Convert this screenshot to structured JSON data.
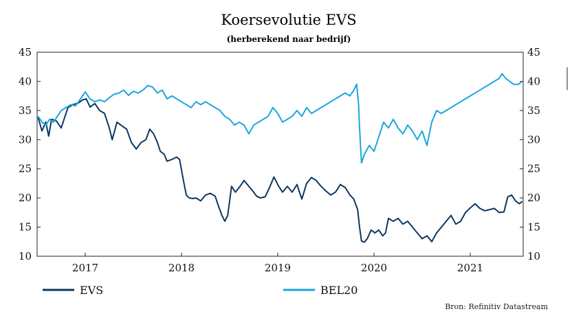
{
  "chart_data": {
    "type": "line",
    "title": "Koersevolutie EVS",
    "subtitle": "(herberekend naar bedrijf)",
    "source": "Bron: Refinitiv Datastream",
    "ylim": [
      10,
      45
    ],
    "y_ticks": [
      10,
      15,
      20,
      25,
      30,
      35,
      40,
      45
    ],
    "x_range": [
      2016.35,
      2021.4
    ],
    "x_ticks": [
      {
        "label": "2017",
        "x": 2016.85
      },
      {
        "label": "2018",
        "x": 2017.85
      },
      {
        "label": "2019",
        "x": 2018.85
      },
      {
        "label": "2020",
        "x": 2019.85
      },
      {
        "label": "2021",
        "x": 2020.85
      }
    ],
    "grid": false,
    "legend_position": "bottom",
    "series": [
      {
        "name": "EVS",
        "color": "#0d3760",
        "points": [
          [
            2016.36,
            33.8
          ],
          [
            2016.4,
            31.5
          ],
          [
            2016.44,
            33.0
          ],
          [
            2016.47,
            30.6
          ],
          [
            2016.5,
            33.5
          ],
          [
            2016.55,
            33.2
          ],
          [
            2016.6,
            32.0
          ],
          [
            2016.63,
            33.5
          ],
          [
            2016.67,
            35.5
          ],
          [
            2016.72,
            36.0
          ],
          [
            2016.78,
            36.3
          ],
          [
            2016.82,
            36.8
          ],
          [
            2016.86,
            37.0
          ],
          [
            2016.9,
            35.6
          ],
          [
            2016.95,
            36.2
          ],
          [
            2017.0,
            35.0
          ],
          [
            2017.05,
            34.5
          ],
          [
            2017.1,
            32.0
          ],
          [
            2017.13,
            30.0
          ],
          [
            2017.18,
            33.0
          ],
          [
            2017.22,
            32.5
          ],
          [
            2017.28,
            31.8
          ],
          [
            2017.33,
            29.5
          ],
          [
            2017.38,
            28.4
          ],
          [
            2017.43,
            29.5
          ],
          [
            2017.48,
            30.0
          ],
          [
            2017.52,
            31.8
          ],
          [
            2017.56,
            31.0
          ],
          [
            2017.6,
            29.5
          ],
          [
            2017.63,
            28.0
          ],
          [
            2017.67,
            27.5
          ],
          [
            2017.7,
            26.3
          ],
          [
            2017.75,
            26.6
          ],
          [
            2017.8,
            27.0
          ],
          [
            2017.83,
            26.6
          ],
          [
            2017.87,
            23.0
          ],
          [
            2017.9,
            20.5
          ],
          [
            2017.93,
            20.0
          ],
          [
            2017.97,
            19.9
          ],
          [
            2018.0,
            20.0
          ],
          [
            2018.05,
            19.5
          ],
          [
            2018.1,
            20.5
          ],
          [
            2018.15,
            20.8
          ],
          [
            2018.2,
            20.3
          ],
          [
            2018.23,
            18.8
          ],
          [
            2018.27,
            17.0
          ],
          [
            2018.3,
            16.0
          ],
          [
            2018.33,
            17.0
          ],
          [
            2018.37,
            22.0
          ],
          [
            2018.41,
            21.0
          ],
          [
            2018.45,
            21.8
          ],
          [
            2018.5,
            23.0
          ],
          [
            2018.55,
            22.0
          ],
          [
            2018.6,
            21.0
          ],
          [
            2018.63,
            20.3
          ],
          [
            2018.67,
            20.0
          ],
          [
            2018.72,
            20.2
          ],
          [
            2018.77,
            22.0
          ],
          [
            2018.81,
            23.6
          ],
          [
            2018.86,
            22.0
          ],
          [
            2018.9,
            21.0
          ],
          [
            2018.95,
            22.0
          ],
          [
            2019.0,
            21.0
          ],
          [
            2019.05,
            22.3
          ],
          [
            2019.1,
            19.8
          ],
          [
            2019.15,
            22.5
          ],
          [
            2019.2,
            23.5
          ],
          [
            2019.25,
            23.0
          ],
          [
            2019.3,
            22.0
          ],
          [
            2019.35,
            21.2
          ],
          [
            2019.4,
            20.5
          ],
          [
            2019.45,
            21.0
          ],
          [
            2019.5,
            22.3
          ],
          [
            2019.55,
            21.8
          ],
          [
            2019.6,
            20.5
          ],
          [
            2019.64,
            19.8
          ],
          [
            2019.68,
            18.0
          ],
          [
            2019.7,
            15.0
          ],
          [
            2019.72,
            12.6
          ],
          [
            2019.75,
            12.4
          ],
          [
            2019.78,
            13.0
          ],
          [
            2019.82,
            14.5
          ],
          [
            2019.86,
            14.0
          ],
          [
            2019.9,
            14.5
          ],
          [
            2019.94,
            13.5
          ],
          [
            2019.97,
            14.0
          ],
          [
            2020.0,
            16.5
          ],
          [
            2020.05,
            16.0
          ],
          [
            2020.1,
            16.5
          ],
          [
            2020.15,
            15.5
          ],
          [
            2020.2,
            16.0
          ],
          [
            2020.25,
            15.0
          ],
          [
            2020.3,
            14.0
          ],
          [
            2020.35,
            13.0
          ],
          [
            2020.4,
            13.5
          ],
          [
            2020.45,
            12.5
          ],
          [
            2020.5,
            14.0
          ],
          [
            2020.55,
            15.0
          ],
          [
            2020.6,
            16.0
          ],
          [
            2020.65,
            17.0
          ],
          [
            2020.7,
            15.5
          ],
          [
            2020.75,
            16.0
          ],
          [
            2020.8,
            17.5
          ],
          [
            2020.85,
            18.3
          ],
          [
            2020.9,
            19.0
          ],
          [
            2020.95,
            18.2
          ],
          [
            2021.0,
            17.8
          ],
          [
            2021.05,
            18.0
          ],
          [
            2021.1,
            18.2
          ],
          [
            2021.15,
            17.5
          ],
          [
            2021.2,
            17.6
          ],
          [
            2021.24,
            20.2
          ],
          [
            2021.28,
            20.5
          ],
          [
            2021.32,
            19.5
          ],
          [
            2021.36,
            19.0
          ],
          [
            2021.39,
            19.4
          ]
        ]
      },
      {
        "name": "BEL20",
        "color": "#1aa7dc",
        "points": [
          [
            2016.36,
            34.0
          ],
          [
            2016.4,
            33.0
          ],
          [
            2016.44,
            32.5
          ],
          [
            2016.48,
            33.5
          ],
          [
            2016.52,
            33.0
          ],
          [
            2016.56,
            34.0
          ],
          [
            2016.6,
            35.0
          ],
          [
            2016.65,
            35.5
          ],
          [
            2016.7,
            36.0
          ],
          [
            2016.75,
            35.8
          ],
          [
            2016.8,
            37.0
          ],
          [
            2016.85,
            38.2
          ],
          [
            2016.9,
            37.0
          ],
          [
            2016.95,
            36.5
          ],
          [
            2017.0,
            36.8
          ],
          [
            2017.05,
            36.5
          ],
          [
            2017.1,
            37.2
          ],
          [
            2017.15,
            37.8
          ],
          [
            2017.2,
            38.0
          ],
          [
            2017.25,
            38.5
          ],
          [
            2017.3,
            37.6
          ],
          [
            2017.35,
            38.3
          ],
          [
            2017.4,
            38.0
          ],
          [
            2017.45,
            38.5
          ],
          [
            2017.5,
            39.3
          ],
          [
            2017.55,
            39.0
          ],
          [
            2017.6,
            38.0
          ],
          [
            2017.65,
            38.5
          ],
          [
            2017.7,
            37.0
          ],
          [
            2017.75,
            37.5
          ],
          [
            2017.8,
            37.0
          ],
          [
            2017.85,
            36.5
          ],
          [
            2017.9,
            36.0
          ],
          [
            2017.95,
            35.5
          ],
          [
            2018.0,
            36.5
          ],
          [
            2018.05,
            36.0
          ],
          [
            2018.1,
            36.5
          ],
          [
            2018.15,
            36.0
          ],
          [
            2018.2,
            35.5
          ],
          [
            2018.25,
            35.0
          ],
          [
            2018.3,
            34.0
          ],
          [
            2018.35,
            33.5
          ],
          [
            2018.4,
            32.5
          ],
          [
            2018.45,
            33.0
          ],
          [
            2018.5,
            32.5
          ],
          [
            2018.55,
            31.0
          ],
          [
            2018.6,
            32.5
          ],
          [
            2018.65,
            33.0
          ],
          [
            2018.7,
            33.5
          ],
          [
            2018.75,
            34.0
          ],
          [
            2018.8,
            35.5
          ],
          [
            2018.85,
            34.5
          ],
          [
            2018.9,
            33.0
          ],
          [
            2018.95,
            33.5
          ],
          [
            2019.0,
            34.0
          ],
          [
            2019.05,
            35.0
          ],
          [
            2019.1,
            34.0
          ],
          [
            2019.15,
            35.5
          ],
          [
            2019.2,
            34.5
          ],
          [
            2019.25,
            35.0
          ],
          [
            2019.3,
            35.5
          ],
          [
            2019.35,
            36.0
          ],
          [
            2019.4,
            36.5
          ],
          [
            2019.45,
            37.0
          ],
          [
            2019.5,
            37.5
          ],
          [
            2019.55,
            38.0
          ],
          [
            2019.6,
            37.5
          ],
          [
            2019.64,
            38.5
          ],
          [
            2019.67,
            39.5
          ],
          [
            2019.69,
            36.0
          ],
          [
            2019.7,
            32.0
          ],
          [
            2019.72,
            26.0
          ],
          [
            2019.75,
            27.5
          ],
          [
            2019.8,
            29.0
          ],
          [
            2019.85,
            28.0
          ],
          [
            2019.9,
            30.5
          ],
          [
            2019.95,
            33.0
          ],
          [
            2020.0,
            32.0
          ],
          [
            2020.05,
            33.5
          ],
          [
            2020.1,
            32.0
          ],
          [
            2020.15,
            31.0
          ],
          [
            2020.2,
            32.5
          ],
          [
            2020.25,
            31.5
          ],
          [
            2020.3,
            30.0
          ],
          [
            2020.35,
            31.5
          ],
          [
            2020.4,
            29.0
          ],
          [
            2020.45,
            33.0
          ],
          [
            2020.5,
            35.0
          ],
          [
            2020.55,
            34.5
          ],
          [
            2020.6,
            35.0
          ],
          [
            2020.65,
            35.5
          ],
          [
            2020.7,
            36.0
          ],
          [
            2020.75,
            36.5
          ],
          [
            2020.8,
            37.0
          ],
          [
            2020.85,
            37.5
          ],
          [
            2020.9,
            38.0
          ],
          [
            2020.95,
            38.5
          ],
          [
            2021.0,
            39.0
          ],
          [
            2021.05,
            39.5
          ],
          [
            2021.1,
            40.0
          ],
          [
            2021.15,
            40.5
          ],
          [
            2021.18,
            41.3
          ],
          [
            2021.22,
            40.5
          ],
          [
            2021.26,
            40.0
          ],
          [
            2021.3,
            39.5
          ],
          [
            2021.35,
            39.5
          ],
          [
            2021.39,
            40.0
          ]
        ]
      }
    ]
  }
}
